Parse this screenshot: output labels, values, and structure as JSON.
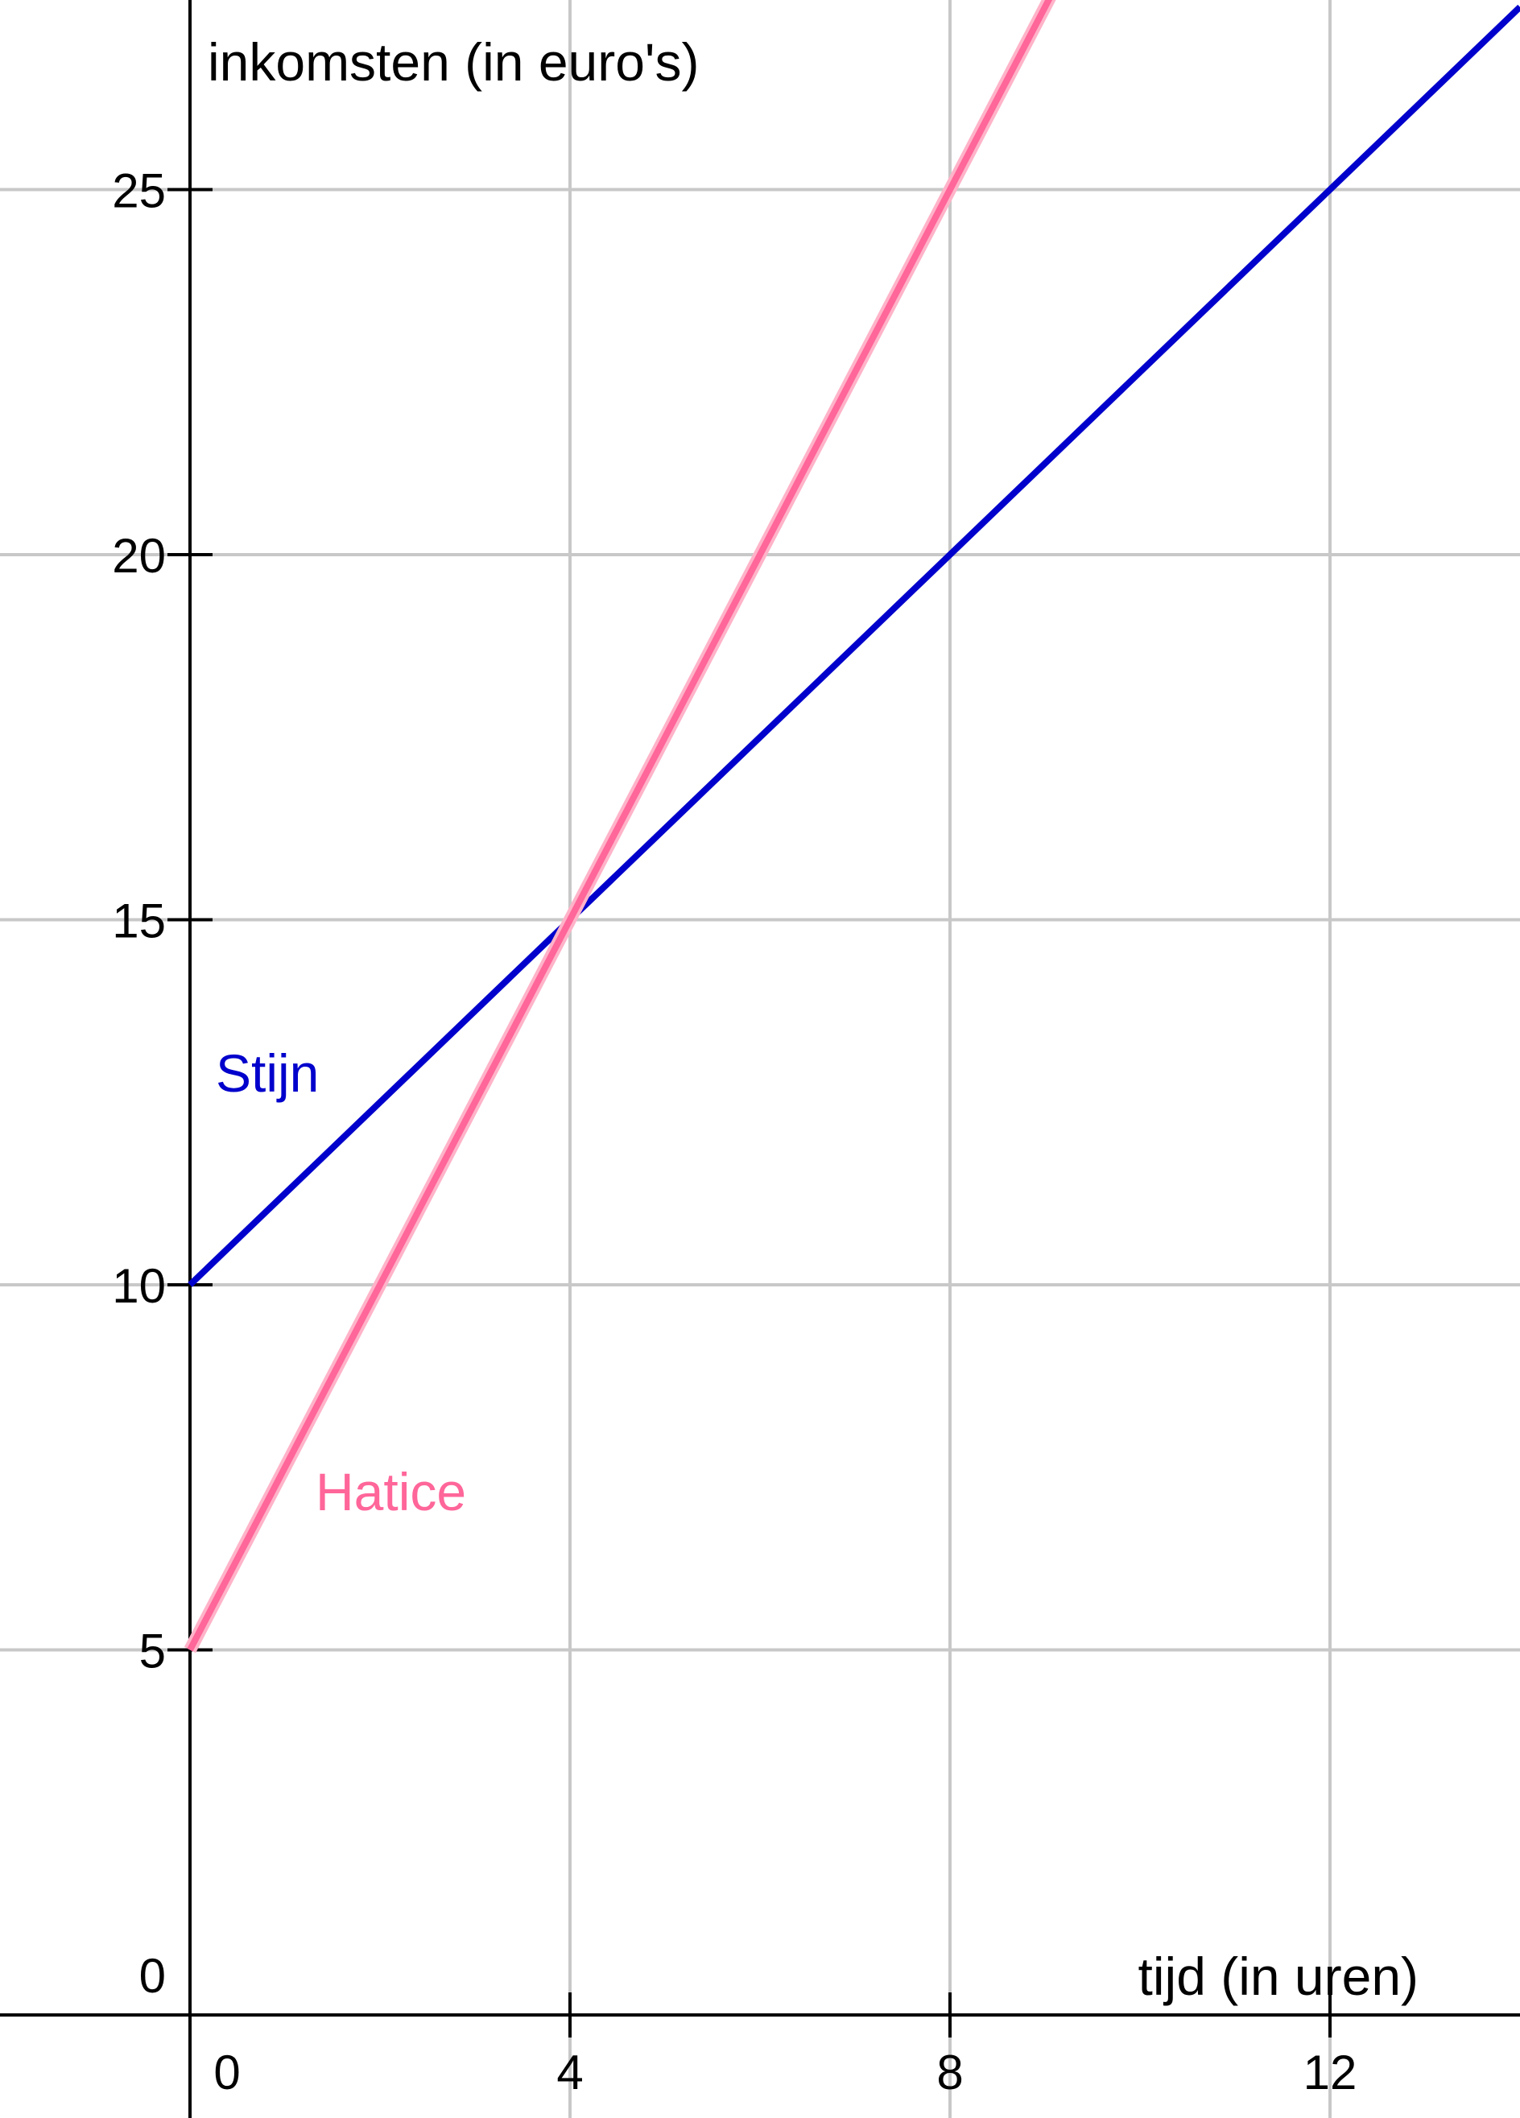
{
  "chart_data": {
    "type": "line",
    "xlabel": "tijd  (in uren)",
    "ylabel": "inkomsten (in euro's)",
    "xlim": [
      -2.0,
      14.0
    ],
    "ylim": [
      -1.3,
      27.6
    ],
    "x_ticks": [
      {
        "value": 0,
        "label": "0"
      },
      {
        "value": 4,
        "label": "4"
      },
      {
        "value": 8,
        "label": "8"
      },
      {
        "value": 12,
        "label": "12"
      }
    ],
    "y_ticks": [
      {
        "value": 0,
        "label": "0"
      },
      {
        "value": 5,
        "label": "5"
      },
      {
        "value": 10,
        "label": "10"
      },
      {
        "value": 15,
        "label": "15"
      },
      {
        "value": 20,
        "label": "20"
      },
      {
        "value": 25,
        "label": "25"
      }
    ],
    "grid": true,
    "series": [
      {
        "name": "Stijn",
        "color": "#0000CC",
        "x": [
          0,
          4,
          8,
          12
        ],
        "y": [
          10,
          15,
          20,
          25
        ]
      },
      {
        "name": "Hatice",
        "color": "#FF6699",
        "x": [
          0,
          4,
          8
        ],
        "y": [
          5,
          15,
          25
        ]
      }
    ]
  }
}
